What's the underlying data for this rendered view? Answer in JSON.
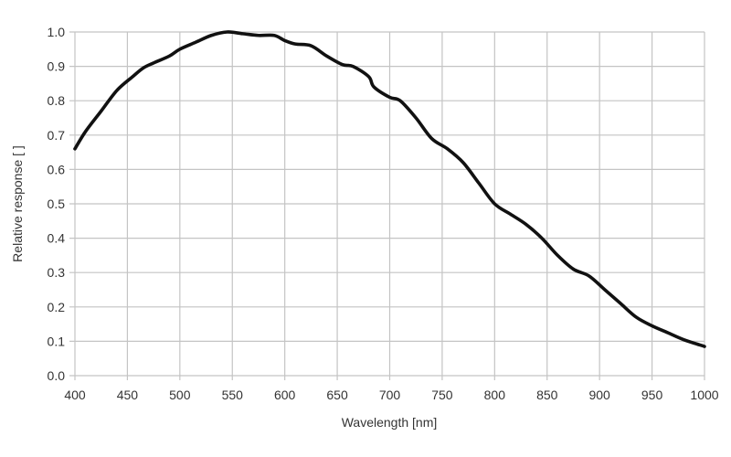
{
  "chart_data": {
    "type": "line",
    "title": "",
    "xlabel": "Wavelength [nm]",
    "ylabel": "Relative response [ ]",
    "xlim": [
      400,
      1000
    ],
    "ylim": [
      0.0,
      1.0
    ],
    "grid": true,
    "x_ticks": [
      "400",
      "450",
      "500",
      "550",
      "600",
      "650",
      "700",
      "750",
      "800",
      "850",
      "900",
      "950",
      "1000"
    ],
    "y_ticks": [
      "0.0",
      "0.1",
      "0.2",
      "0.3",
      "0.4",
      "0.5",
      "0.6",
      "0.7",
      "0.8",
      "0.9",
      "1.0"
    ],
    "line_color": "#111111",
    "series": [
      {
        "x": [
          400,
          410,
          425,
          440,
          455,
          465,
          475,
          490,
          500,
          515,
          530,
          545,
          560,
          575,
          590,
          600,
          610,
          625,
          640,
          655,
          665,
          680,
          685,
          700,
          710,
          725,
          740,
          755,
          770,
          785,
          800,
          815,
          830,
          845,
          860,
          875,
          890,
          905,
          920,
          935,
          950,
          965,
          980,
          1000
        ],
        "y": [
          0.66,
          0.71,
          0.77,
          0.83,
          0.87,
          0.895,
          0.91,
          0.93,
          0.95,
          0.97,
          0.99,
          1.0,
          0.995,
          0.99,
          0.99,
          0.975,
          0.965,
          0.96,
          0.93,
          0.905,
          0.9,
          0.87,
          0.84,
          0.81,
          0.8,
          0.75,
          0.69,
          0.66,
          0.62,
          0.56,
          0.5,
          0.47,
          0.44,
          0.4,
          0.35,
          0.31,
          0.29,
          0.25,
          0.21,
          0.17,
          0.145,
          0.125,
          0.105,
          0.085
        ]
      }
    ]
  }
}
